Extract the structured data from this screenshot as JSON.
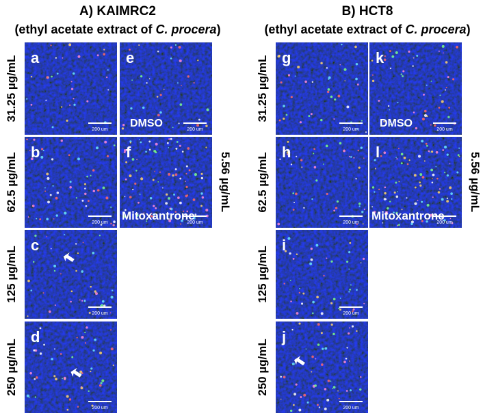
{
  "groups": [
    {
      "title": "A) KAIMRC2",
      "subtitle": [
        "(ethyl acetate extract of ",
        "C. procera",
        ")"
      ],
      "row_labels": [
        "31.25 µg/mL",
        "62.5 µg/mL",
        "125 µg/mL",
        "250 µg/mL"
      ],
      "side_label": "5.56 µg/mL",
      "panels": [
        {
          "letter": "a",
          "scale": "200 um"
        },
        {
          "letter": "b",
          "scale": "200 um"
        },
        {
          "letter": "c",
          "scale": "200 um",
          "arrow": true
        },
        {
          "letter": "d",
          "scale": "200 um",
          "arrow": true
        },
        {
          "letter": "e",
          "scale": "200 um",
          "label": "DMSO"
        },
        {
          "letter": "f",
          "scale": "200 um",
          "label": "Mitoxantrone"
        }
      ]
    },
    {
      "title": "B) HCT8",
      "subtitle": [
        "(ethyl acetate extract of ",
        "C. procera",
        ")"
      ],
      "row_labels": [
        "31.25 µg/mL",
        "62.5 µg/mL",
        "125 µg/mL",
        "250 µg/mL"
      ],
      "side_label": "5.56 µg/mL",
      "panels": [
        {
          "letter": "g",
          "scale": "200 um"
        },
        {
          "letter": "h",
          "scale": "200 um"
        },
        {
          "letter": "i",
          "scale": "200 um"
        },
        {
          "letter": "j",
          "scale": "200 um",
          "arrow": true
        },
        {
          "letter": "k",
          "scale": "200 um",
          "label": "DMSO"
        },
        {
          "letter": "l",
          "scale": "200 um",
          "label": "Mitoxantrone"
        }
      ]
    }
  ]
}
